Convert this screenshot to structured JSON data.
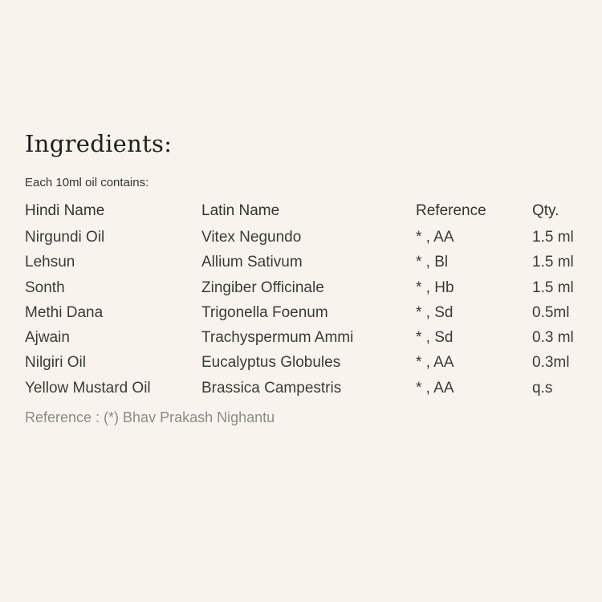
{
  "title": "Ingredients:",
  "subtitle": "Each 10ml oil contains:",
  "table": {
    "headers": [
      "Hindi Name",
      "Latin Name",
      "Reference",
      "Qty."
    ],
    "rows": [
      [
        "Nirgundi Oil",
        "Vitex Negundo",
        "* , AA",
        "1.5 ml"
      ],
      [
        "Lehsun",
        "Allium Sativum",
        "* , Bl",
        "1.5 ml"
      ],
      [
        "Sonth",
        "Zingiber Officinale",
        "* , Hb",
        "1.5 ml"
      ],
      [
        "Methi Dana",
        "Trigonella Foenum",
        "* , Sd",
        "0.5ml"
      ],
      [
        "Ajwain",
        "Trachyspermum Ammi",
        "* , Sd",
        "0.3 ml"
      ],
      [
        "Nilgiri Oil",
        "Eucalyptus Globules",
        "* , AA",
        "0.3ml"
      ],
      [
        "Yellow Mustard Oil",
        "Brassica Campestris",
        "* , AA",
        "q.s"
      ]
    ]
  },
  "reference_note": "Reference : (*) Bhav Prakash Nighantu"
}
